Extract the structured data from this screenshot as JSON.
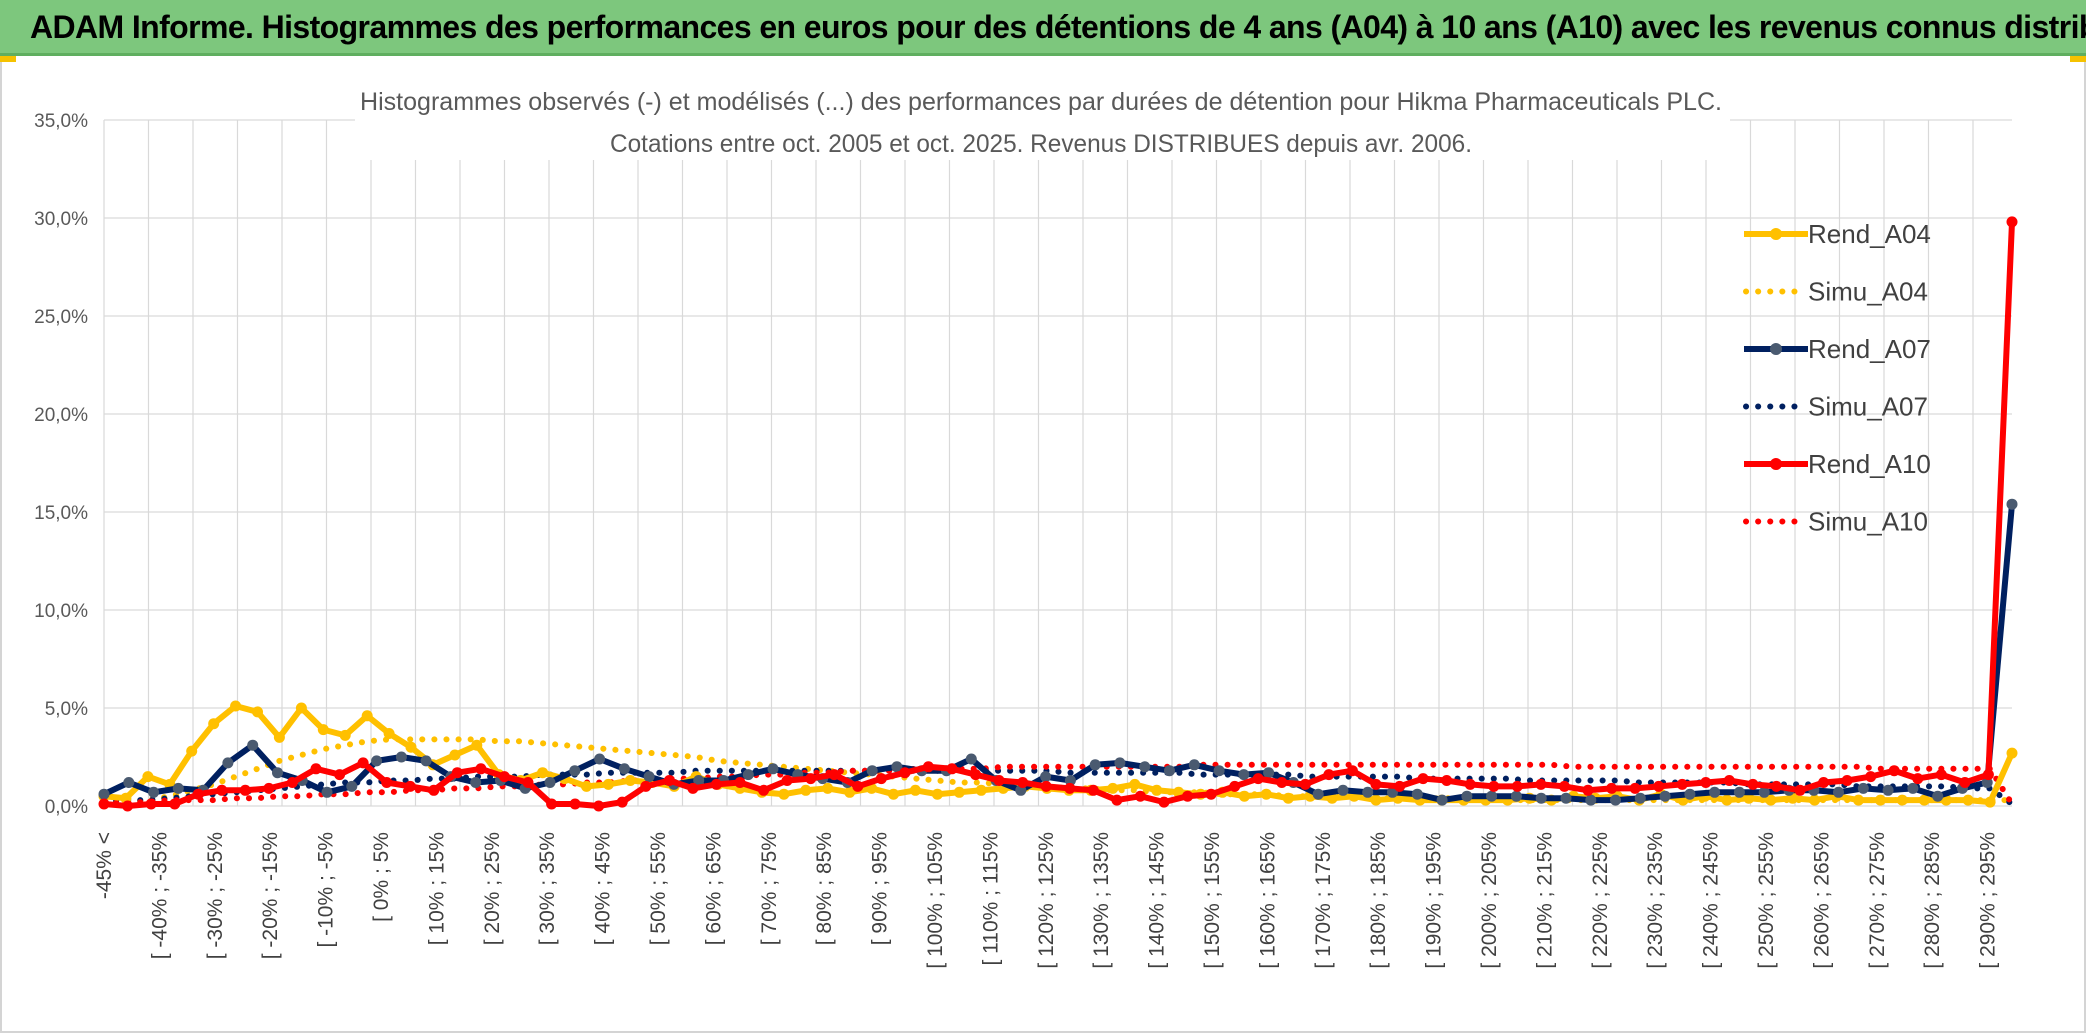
{
  "banner": {
    "title": "ADAM Informe. Histogrammes des performances en euros pour des détentions de 4 ans (A04) à 10 ans (A10) avec les revenus connus distribués"
  },
  "colors": {
    "banner_bg": "#7dc77d",
    "A04": "#ffc000",
    "A07": "#002060",
    "A10": "#ff0000",
    "marker_A07": "#4a5a70"
  },
  "chart_data": {
    "type": "line",
    "title": [
      "Histogrammes observés (-) et modélisés (...) des performances par durées de détention pour Hikma Pharmaceuticals PLC.",
      "Cotations entre oct. 2005 et oct. 2025. Revenus DISTRIBUES depuis avr. 2006."
    ],
    "ylim": [
      0,
      35
    ],
    "yticks": [
      "0,0%",
      "5,0%",
      "10,0%",
      "15,0%",
      "20,0%",
      "25,0%",
      "30,0%",
      "35,0%"
    ],
    "grid": true,
    "legend_position": "right",
    "x_labels_shown": [
      "-45% <",
      "[ -40% ; -35%",
      "[ -30% ; -25%",
      "[ -20% ; -15%",
      "[ -10% ; -5%",
      "[ 0% ; 5%",
      "[ 10% ; 15%",
      "[ 20% ; 25%",
      "[ 30% ; 35%",
      "[ 40% ; 45%",
      "[ 50% ; 55%",
      "[ 60% ; 65%",
      "[ 70% ; 75%",
      "[ 80% ; 85%",
      "[ 90% ; 95%",
      "[ 100% ; 105%",
      "[ 110% ; 115%",
      "[ 120% ; 125%",
      "[ 130% ; 135%",
      "[ 140% ; 145%",
      "[ 150% ; 155%",
      "[ 160% ; 165%",
      "[ 170% ; 175%",
      "[ 180% ; 185%",
      "[ 190% ; 195%",
      "[ 200% ; 205%",
      "[ 210% ; 215%",
      "[ 220% ; 225%",
      "[ 230% ; 235%",
      "[ 240% ; 245%",
      "[ 250% ; 255%",
      "[ 260% ; 265%",
      "[ 270% ; 275%",
      "[ 280% ; 285%",
      "[ 290% ; 295%"
    ],
    "series": [
      {
        "name": "Rend_A04",
        "style": "solid",
        "color": "#ffc000",
        "values": [
          0.5,
          0.4,
          1.5,
          1.1,
          2.8,
          4.2,
          5.1,
          4.8,
          3.5,
          5.0,
          3.9,
          3.6,
          4.6,
          3.7,
          3.0,
          2.1,
          2.6,
          3.1,
          1.6,
          1.3,
          1.7,
          1.4,
          1.0,
          1.1,
          1.3,
          1.2,
          1.0,
          1.5,
          1.1,
          0.9,
          0.7,
          0.6,
          0.8,
          0.9,
          0.7,
          0.9,
          0.6,
          0.8,
          0.6,
          0.7,
          0.8,
          0.9,
          1.0,
          0.9,
          0.8,
          0.8,
          0.9,
          1.1,
          0.8,
          0.7,
          0.6,
          0.7,
          0.5,
          0.6,
          0.4,
          0.5,
          0.4,
          0.5,
          0.3,
          0.4,
          0.3,
          0.3,
          0.3,
          0.3,
          0.3,
          0.4,
          0.3,
          0.5,
          0.4,
          0.5,
          0.3,
          0.6,
          0.3,
          0.5,
          0.3,
          0.4,
          0.3,
          0.4,
          0.3,
          0.5,
          0.3,
          0.3,
          0.3,
          0.3,
          0.3,
          0.3,
          0.2,
          2.7
        ]
      },
      {
        "name": "Simu_A04",
        "style": "dotted",
        "color": "#ffc000",
        "values": [
          0.1,
          0.2,
          0.3,
          0.5,
          0.8,
          1.1,
          1.5,
          1.9,
          2.3,
          2.6,
          2.9,
          3.1,
          3.3,
          3.4,
          3.4,
          3.4,
          3.4,
          3.4,
          3.3,
          3.3,
          3.2,
          3.1,
          3.0,
          2.9,
          2.8,
          2.7,
          2.6,
          2.5,
          2.3,
          2.2,
          2.1,
          2.0,
          1.9,
          1.8,
          1.7,
          1.6,
          1.5,
          1.4,
          1.3,
          1.2,
          1.2,
          1.1,
          1.0,
          1.0,
          0.9,
          0.9,
          0.8,
          0.8,
          0.7,
          0.7,
          0.7,
          0.6,
          0.6,
          0.6,
          0.5,
          0.5,
          0.5,
          0.5,
          0.4,
          0.4,
          0.4,
          0.4,
          0.4,
          0.4,
          0.3,
          0.3,
          0.3,
          0.3,
          0.3,
          0.3,
          0.3,
          0.3,
          0.3,
          0.3,
          0.3,
          0.3,
          0.3,
          0.3,
          0.3,
          0.3,
          0.3,
          0.3,
          0.3,
          0.3,
          0.3,
          0.3,
          0.3,
          0.3
        ]
      },
      {
        "name": "Rend_A07",
        "style": "solid",
        "color": "#002060",
        "values": [
          0.6,
          1.2,
          0.7,
          0.9,
          0.8,
          2.2,
          3.1,
          1.7,
          1.3,
          0.7,
          1.0,
          2.3,
          2.5,
          2.3,
          1.5,
          1.2,
          1.3,
          0.9,
          1.2,
          1.8,
          2.4,
          1.9,
          1.5,
          1.1,
          1.3,
          1.3,
          1.6,
          1.9,
          1.6,
          1.4,
          1.2,
          1.8,
          2.0,
          1.8,
          1.8,
          2.4,
          1.3,
          0.8,
          1.5,
          1.3,
          2.1,
          2.2,
          2.0,
          1.8,
          2.1,
          1.8,
          1.6,
          1.7,
          1.2,
          0.6,
          0.8,
          0.7,
          0.7,
          0.6,
          0.3,
          0.5,
          0.5,
          0.5,
          0.4,
          0.4,
          0.3,
          0.3,
          0.4,
          0.5,
          0.6,
          0.7,
          0.7,
          0.7,
          0.8,
          0.8,
          0.7,
          0.9,
          0.8,
          0.9,
          0.5,
          0.9,
          1.2,
          15.4
        ]
      },
      {
        "name": "Simu_A07",
        "style": "dotted",
        "color": "#002060",
        "values": [
          0.2,
          0.3,
          0.3,
          0.4,
          0.5,
          0.6,
          0.7,
          0.8,
          0.9,
          1.0,
          1.1,
          1.2,
          1.2,
          1.3,
          1.3,
          1.4,
          1.4,
          1.5,
          1.5,
          1.5,
          1.6,
          1.6,
          1.6,
          1.7,
          1.7,
          1.7,
          1.7,
          1.8,
          1.8,
          1.8,
          1.8,
          1.8,
          1.8,
          1.8,
          1.8,
          1.8,
          1.8,
          1.8,
          1.8,
          1.8,
          1.8,
          1.8,
          1.8,
          1.8,
          1.7,
          1.7,
          1.7,
          1.7,
          1.7,
          1.7,
          1.6,
          1.6,
          1.6,
          1.6,
          1.6,
          1.5,
          1.5,
          1.5,
          1.5,
          1.5,
          1.4,
          1.4,
          1.4,
          1.4,
          1.4,
          1.3,
          1.3,
          1.3,
          1.3,
          1.3,
          1.2,
          1.2,
          1.2,
          1.2,
          1.2,
          1.1,
          1.1,
          1.1,
          1.1,
          1.1,
          1.0,
          1.0,
          1.0,
          1.0,
          1.0,
          0.9,
          0.9,
          0.1
        ]
      },
      {
        "name": "Rend_A10",
        "style": "solid",
        "color": "#ff0000",
        "values": [
          0.1,
          0.0,
          0.1,
          0.1,
          0.6,
          0.8,
          0.8,
          0.9,
          1.2,
          1.9,
          1.6,
          2.2,
          1.2,
          1.0,
          0.8,
          1.7,
          1.9,
          1.5,
          1.2,
          0.1,
          0.1,
          0.0,
          0.2,
          1.0,
          1.3,
          0.9,
          1.1,
          1.2,
          0.8,
          1.3,
          1.4,
          1.6,
          1.0,
          1.4,
          1.7,
          2.0,
          1.9,
          1.6,
          1.3,
          1.2,
          1.0,
          0.9,
          0.8,
          0.3,
          0.5,
          0.2,
          0.5,
          0.6,
          1.0,
          1.4,
          1.2,
          1.1,
          1.6,
          1.8,
          1.1,
          1.0,
          1.4,
          1.3,
          1.1,
          1.0,
          1.0,
          1.1,
          1.0,
          0.8,
          0.9,
          0.9,
          1.0,
          1.1,
          1.2,
          1.3,
          1.1,
          1.0,
          0.8,
          1.2,
          1.3,
          1.5,
          1.8,
          1.4,
          1.6,
          1.2,
          1.6,
          29.8
        ]
      },
      {
        "name": "Simu_A10",
        "style": "dotted",
        "color": "#ff0000",
        "values": [
          0.1,
          0.2,
          0.2,
          0.3,
          0.3,
          0.3,
          0.4,
          0.4,
          0.5,
          0.5,
          0.6,
          0.6,
          0.7,
          0.7,
          0.8,
          0.8,
          0.9,
          0.9,
          1.0,
          1.0,
          1.1,
          1.1,
          1.2,
          1.2,
          1.3,
          1.3,
          1.4,
          1.4,
          1.5,
          1.5,
          1.6,
          1.6,
          1.7,
          1.7,
          1.8,
          1.8,
          1.8,
          1.9,
          1.9,
          1.9,
          1.9,
          2.0,
          2.0,
          2.0,
          2.0,
          2.0,
          2.0,
          2.0,
          2.0,
          2.0,
          2.1,
          2.1,
          2.1,
          2.1,
          2.1,
          2.1,
          2.1,
          2.1,
          2.1,
          2.1,
          2.1,
          2.1,
          2.1,
          2.1,
          2.1,
          2.1,
          2.1,
          2.0,
          2.0,
          2.0,
          2.0,
          2.0,
          2.0,
          2.0,
          2.0,
          2.0,
          2.0,
          2.0,
          2.0,
          2.0,
          2.0,
          1.9,
          1.9,
          1.9,
          1.9,
          1.9,
          1.9,
          0.1
        ]
      }
    ]
  }
}
